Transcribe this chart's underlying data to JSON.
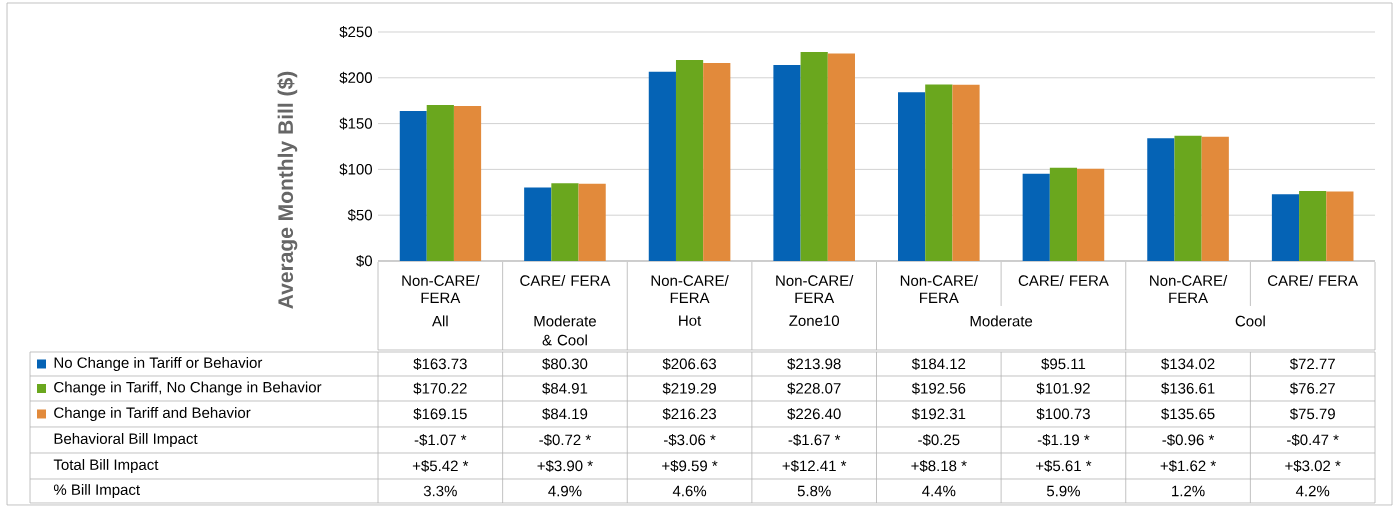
{
  "chart_data": {
    "type": "bar",
    "ylabel": "Average Monthly Bill ($)",
    "categories": [
      "Non-CARE/ FERA",
      "CARE/ FERA",
      "Non-CARE/ FERA",
      "Non-CARE/ FERA",
      "Non-CARE/ FERA",
      "CARE/ FERA",
      "Non-CARE/ FERA",
      "CARE/ FERA"
    ],
    "series": [
      {
        "name": "No Change in Tariff or Behavior",
        "color": "#0563b5",
        "values": [
          163.73,
          80.3,
          206.63,
          213.98,
          184.12,
          95.11,
          134.02,
          72.77
        ],
        "value_labels": [
          "$163.73",
          "$80.30",
          "$206.63",
          "$213.98",
          "$184.12",
          "$95.11",
          "$134.02",
          "$72.77"
        ]
      },
      {
        "name": "Change in Tariff, No Change in Behavior",
        "color": "#6aa71e",
        "values": [
          170.22,
          84.91,
          219.29,
          228.07,
          192.56,
          101.92,
          136.61,
          76.27
        ],
        "value_labels": [
          "$170.22",
          "$84.91",
          "$219.29",
          "$228.07",
          "$192.56",
          "$101.92",
          "$136.61",
          "$76.27"
        ]
      },
      {
        "name": "Change in Tariff and Behavior",
        "color": "#e28a3b",
        "values": [
          169.15,
          84.19,
          216.23,
          226.4,
          192.31,
          100.73,
          135.65,
          75.79
        ],
        "value_labels": [
          "$169.15",
          "$84.19",
          "$216.23",
          "$226.40",
          "$192.31",
          "$100.73",
          "$135.65",
          "$75.79"
        ]
      }
    ],
    "ylim": [
      0,
      250
    ],
    "yticks": [
      {
        "value": 0,
        "label": "$0"
      },
      {
        "value": 50,
        "label": "$50"
      },
      {
        "value": 100,
        "label": "$100"
      },
      {
        "value": 150,
        "label": "$150"
      },
      {
        "value": 200,
        "label": "$200"
      },
      {
        "value": 250,
        "label": "$250"
      }
    ],
    "grid": "y",
    "legend": "bottom",
    "annotations": [
      "All",
      "Moderate & Cool",
      "Hot",
      "Zone10",
      "Moderate",
      "Cool",
      "Behavioral Bill Impact",
      "-$1.07 *",
      "-$0.72 *",
      "-$3.06 *",
      "-$1.67 *",
      "-$0.25",
      "-$1.19 *",
      "-$0.96 *",
      "-$0.47 *",
      "Total Bill Impact",
      "+$5.42 *",
      "+$3.90 *",
      "+$9.59 *",
      "+$12.41 *",
      "+$8.18 *",
      "+$5.61 *",
      "+$1.62 *",
      "+$3.02 *",
      "% Bill Impact",
      "3.3%",
      "4.9%",
      "4.6%",
      "5.8%",
      "4.4%",
      "5.9%",
      "1.2%",
      "4.2%"
    ]
  }
}
